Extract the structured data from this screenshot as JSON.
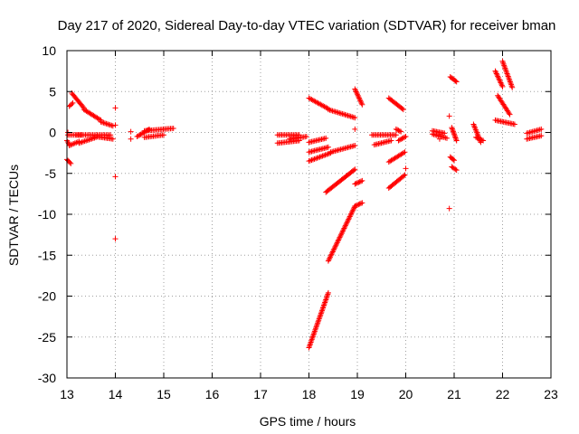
{
  "chart_data": {
    "type": "scatter",
    "title": "Day 217 of 2020, Sidereal Day-to-day VTEC variation (SDTVAR) for receiver bman",
    "xlabel": "GPS time / hours",
    "ylabel": "SDTVAR / TECUs",
    "xlim": [
      13,
      23
    ],
    "ylim": [
      -30,
      10
    ],
    "xticks": [
      "13",
      "14",
      "15",
      "16",
      "17",
      "18",
      "19",
      "20",
      "21",
      "22",
      "23"
    ],
    "yticks": [
      "10",
      "5",
      "0",
      "-5",
      "-10",
      "-15",
      "-20",
      "-25",
      "-30"
    ],
    "grid": true,
    "marker": "+",
    "color": "#ff0000",
    "tracks": [
      {
        "x": [
          13.02,
          13.3
        ],
        "y": [
          -0.3,
          -0.3
        ]
      },
      {
        "x": [
          13.05,
          13.25
        ],
        "y": [
          -1.6,
          -1.1
        ]
      },
      {
        "x": [
          13.25,
          13.6
        ],
        "y": [
          -1.3,
          -0.6
        ]
      },
      {
        "x": [
          13.2,
          13.9
        ],
        "y": [
          -0.3,
          -0.3
        ]
      },
      {
        "x": [
          13.6,
          13.95
        ],
        "y": [
          -0.5,
          -0.8
        ]
      },
      {
        "x": [
          13.1,
          13.35
        ],
        "y": [
          4.8,
          3.0
        ]
      },
      {
        "x": [
          13.35,
          13.7
        ],
        "y": [
          2.8,
          1.5
        ]
      },
      {
        "x": [
          13.7,
          13.95
        ],
        "y": [
          1.3,
          0.8
        ]
      },
      {
        "x": [
          13.0,
          13.08
        ],
        "y": [
          -3.3,
          -3.8
        ]
      },
      {
        "x": [
          13.05,
          13.12
        ],
        "y": [
          3.2,
          3.6
        ]
      },
      {
        "x": [
          13.0,
          13.05
        ],
        "y": [
          -1.0,
          -1.5
        ]
      },
      {
        "x": [
          14.45,
          14.7
        ],
        "y": [
          -0.5,
          0.4
        ]
      },
      {
        "x": [
          14.6,
          15.2
        ],
        "y": [
          0.2,
          0.5
        ]
      },
      {
        "x": [
          14.6,
          15.0
        ],
        "y": [
          -0.6,
          -0.3
        ]
      },
      {
        "x": [
          17.35,
          17.8
        ],
        "y": [
          -0.3,
          -0.3
        ]
      },
      {
        "x": [
          17.35,
          17.8
        ],
        "y": [
          -1.3,
          -1.0
        ]
      },
      {
        "x": [
          17.6,
          17.95
        ],
        "y": [
          -0.8,
          -0.5
        ]
      },
      {
        "x": [
          18.0,
          18.35
        ],
        "y": [
          -1.2,
          -0.7
        ]
      },
      {
        "x": [
          18.0,
          18.4
        ],
        "y": [
          -2.4,
          -1.8
        ]
      },
      {
        "x": [
          18.0,
          18.45
        ],
        "y": [
          -3.5,
          -2.5
        ]
      },
      {
        "x": [
          18.45,
          18.95
        ],
        "y": [
          -2.4,
          -1.6
        ]
      },
      {
        "x": [
          18.0,
          18.4
        ],
        "y": [
          4.2,
          2.9
        ]
      },
      {
        "x": [
          18.4,
          18.95
        ],
        "y": [
          2.8,
          1.8
        ]
      },
      {
        "x": [
          18.35,
          18.95
        ],
        "y": [
          -7.3,
          -4.5
        ]
      },
      {
        "x": [
          18.0,
          18.4
        ],
        "y": [
          -26.3,
          -19.6
        ]
      },
      {
        "x": [
          18.4,
          18.95
        ],
        "y": [
          -15.7,
          -9.0
        ]
      },
      {
        "x": [
          18.95,
          19.1
        ],
        "y": [
          5.3,
          3.4
        ]
      },
      {
        "x": [
          18.95,
          19.1
        ],
        "y": [
          -9.0,
          -8.6
        ]
      },
      {
        "x": [
          18.95,
          19.1
        ],
        "y": [
          -6.3,
          -5.9
        ]
      },
      {
        "x": [
          19.3,
          19.8
        ],
        "y": [
          -0.3,
          -0.3
        ]
      },
      {
        "x": [
          19.35,
          19.7
        ],
        "y": [
          -1.5,
          -1.0
        ]
      },
      {
        "x": [
          19.65,
          19.95
        ],
        "y": [
          4.2,
          2.8
        ]
      },
      {
        "x": [
          19.65,
          19.98
        ],
        "y": [
          -3.6,
          -2.4
        ]
      },
      {
        "x": [
          19.65,
          19.98
        ],
        "y": [
          -6.8,
          -5.2
        ]
      },
      {
        "x": [
          19.85,
          20.0
        ],
        "y": [
          -1.0,
          -0.5
        ]
      },
      {
        "x": [
          19.8,
          19.9
        ],
        "y": [
          0.4,
          0.1
        ]
      },
      {
        "x": [
          20.55,
          20.85
        ],
        "y": [
          -0.2,
          -0.7
        ]
      },
      {
        "x": [
          20.55,
          20.8
        ],
        "y": [
          0.2,
          -0.1
        ]
      },
      {
        "x": [
          20.92,
          21.05
        ],
        "y": [
          6.8,
          6.2
        ]
      },
      {
        "x": [
          20.95,
          21.05
        ],
        "y": [
          0.6,
          -1.0
        ]
      },
      {
        "x": [
          20.92,
          21.0
        ],
        "y": [
          -3.0,
          -3.4
        ]
      },
      {
        "x": [
          20.95,
          21.05
        ],
        "y": [
          -4.2,
          -4.6
        ]
      },
      {
        "x": [
          21.4,
          21.55
        ],
        "y": [
          1.0,
          -1.2
        ]
      },
      {
        "x": [
          21.45,
          21.6
        ],
        "y": [
          -0.6,
          -1.0
        ]
      },
      {
        "x": [
          21.85,
          22.0
        ],
        "y": [
          7.5,
          5.6
        ]
      },
      {
        "x": [
          22.0,
          22.2
        ],
        "y": [
          8.7,
          5.5
        ]
      },
      {
        "x": [
          21.9,
          22.15
        ],
        "y": [
          4.5,
          2.2
        ]
      },
      {
        "x": [
          21.85,
          22.25
        ],
        "y": [
          1.5,
          1.0
        ]
      },
      {
        "x": [
          22.5,
          22.8
        ],
        "y": [
          -0.1,
          0.4
        ]
      },
      {
        "x": [
          22.5,
          22.8
        ],
        "y": [
          -0.8,
          -0.4
        ]
      }
    ],
    "points": [
      {
        "x": 13.02,
        "y": 0.0
      },
      {
        "x": 14.0,
        "y": 3.0
      },
      {
        "x": 14.0,
        "y": 0.9
      },
      {
        "x": 14.0,
        "y": -5.4
      },
      {
        "x": 14.0,
        "y": -13.0
      },
      {
        "x": 14.32,
        "y": 0.1
      },
      {
        "x": 14.32,
        "y": -0.8
      },
      {
        "x": 18.95,
        "y": 0.4
      },
      {
        "x": 20.0,
        "y": -4.4
      },
      {
        "x": 20.9,
        "y": 2.0
      },
      {
        "x": 20.9,
        "y": -9.3
      },
      {
        "x": 20.7,
        "y": -0.8
      }
    ]
  }
}
